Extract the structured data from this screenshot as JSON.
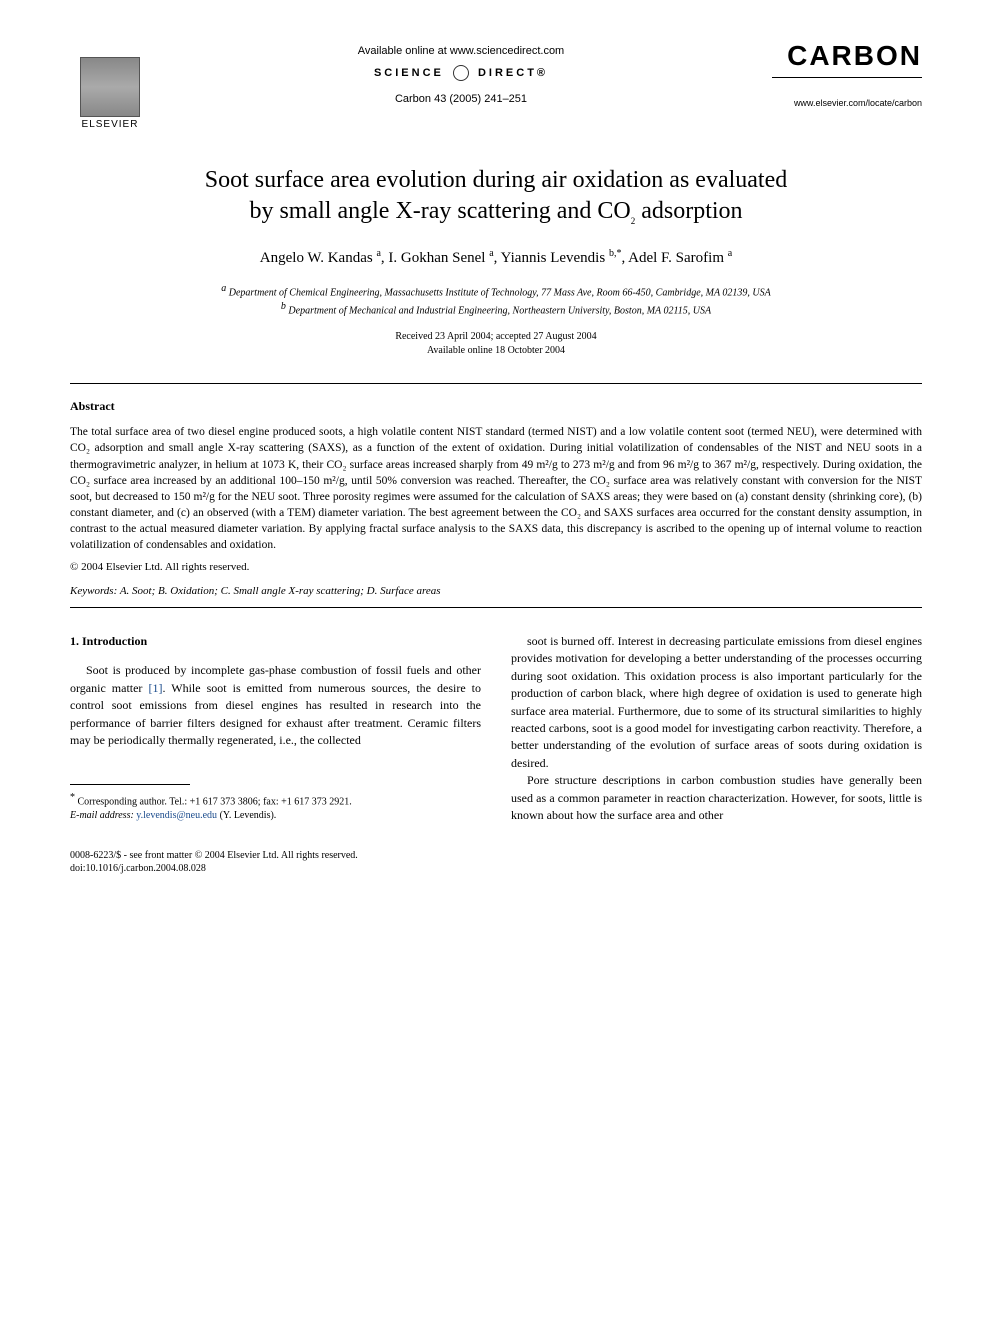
{
  "header": {
    "elsevier_label": "ELSEVIER",
    "available_online": "Available online at www.sciencedirect.com",
    "science_direct_left": "SCIENCE",
    "science_direct_right": "DIRECT®",
    "citation": "Carbon 43 (2005) 241–251",
    "journal_name": "CARBON",
    "journal_url": "www.elsevier.com/locate/carbon"
  },
  "title_line1": "Soot surface area evolution during air oxidation as evaluated",
  "title_line2": "by small angle X-ray scattering and CO",
  "title_sub": "2",
  "title_line2_end": " adsorption",
  "authors": {
    "a1": "Angelo W. Kandas",
    "a1_sup": "a",
    "a2": "I. Gokhan Senel",
    "a2_sup": "a",
    "a3": "Yiannis Levendis",
    "a3_sup": "b,*",
    "a4": "Adel F. Sarofim",
    "a4_sup": "a"
  },
  "affiliations": {
    "a": "Department of Chemical Engineering, Massachusetts Institute of Technology, 77 Mass Ave, Room 66-450, Cambridge, MA 02139, USA",
    "b": "Department of Mechanical and Industrial Engineering, Northeastern University, Boston, MA 02115, USA"
  },
  "dates": {
    "received": "Received 23 April 2004; accepted 27 August 2004",
    "available": "Available online 18 Octobter 2004"
  },
  "abstract": {
    "heading": "Abstract",
    "text": "The total surface area of two diesel engine produced soots, a high volatile content NIST standard (termed NIST) and a low volatile content soot (termed NEU), were determined with CO₂ adsorption and small angle X-ray scattering (SAXS), as a function of the extent of oxidation. During initial volatilization of condensables of the NIST and NEU soots in a thermogravimetric analyzer, in helium at 1073 K, their CO₂ surface areas increased sharply from 49 m²/g to 273 m²/g and from 96 m²/g to 367 m²/g, respectively. During oxidation, the CO₂ surface area increased by an additional 100–150 m²/g, until 50% conversion was reached. Thereafter, the CO₂ surface area was relatively constant with conversion for the NIST soot, but decreased to 150 m²/g for the NEU soot. Three porosity regimes were assumed for the calculation of SAXS areas; they were based on (a) constant density (shrinking core), (b) constant diameter, and (c) an observed (with a TEM) diameter variation. The best agreement between the CO₂ and SAXS surfaces area occurred for the constant density assumption, in contrast to the actual measured diameter variation. By applying fractal surface analysis to the SAXS data, this discrepancy is ascribed to the opening up of internal volume to reaction volatilization of condensables and oxidation.",
    "copyright": "© 2004 Elsevier Ltd. All rights reserved."
  },
  "keywords": {
    "label": "Keywords:",
    "text": "A. Soot; B. Oxidation; C. Small angle X-ray scattering; D. Surface areas"
  },
  "intro": {
    "heading": "1. Introduction",
    "col1_p1a": "Soot is produced by incomplete gas-phase combustion of fossil fuels and other organic matter ",
    "col1_ref": "[1]",
    "col1_p1b": ". While soot is emitted from numerous sources, the desire to control soot emissions from diesel engines has resulted in research into the performance of barrier filters designed for exhaust after treatment. Ceramic filters may be periodically thermally regenerated, i.e., the collected",
    "col2_p1": "soot is burned off. Interest in decreasing particulate emissions from diesel engines provides motivation for developing a better understanding of the processes occurring during soot oxidation. This oxidation process is also important particularly for the production of carbon black, where high degree of oxidation is used to generate high surface area material. Furthermore, due to some of its structural similarities to highly reacted carbons, soot is a good model for investigating carbon reactivity. Therefore, a better understanding of the evolution of surface areas of soots during oxidation is desired.",
    "col2_p2": "Pore structure descriptions in carbon combustion studies have generally been used as a common parameter in reaction characterization. However, for soots, little is known about how the surface area and other"
  },
  "footnote": {
    "corr": "Corresponding author. Tel.: +1 617 373 3806; fax: +1 617 373 2921.",
    "email_label": "E-mail address:",
    "email": "y.levendis@neu.edu",
    "email_name": "(Y. Levendis)."
  },
  "footer": {
    "issn": "0008-6223/$ - see front matter © 2004 Elsevier Ltd. All rights reserved.",
    "doi": "doi:10.1016/j.carbon.2004.08.028"
  }
}
